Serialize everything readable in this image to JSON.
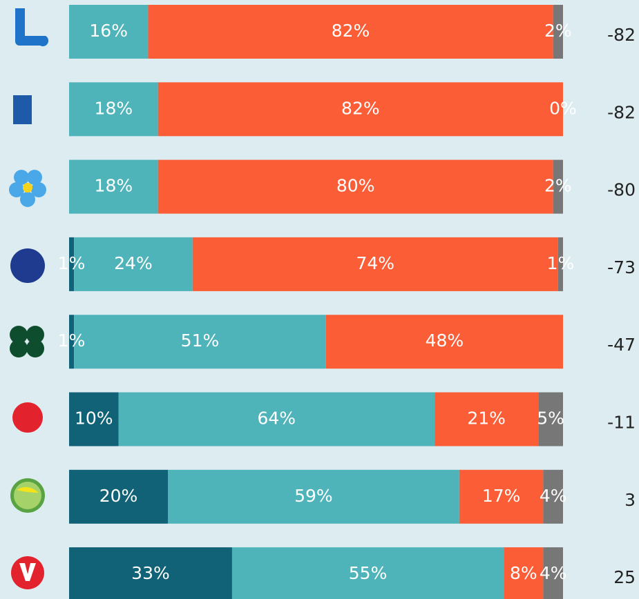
{
  "chart_data": {
    "type": "stacked-bar-horizontal",
    "categories": [
      null,
      null,
      null,
      null,
      null,
      null,
      null,
      null
    ],
    "xlim": [
      0,
      100
    ],
    "series": [
      {
        "color": "#126277",
        "values": [
          null,
          null,
          null,
          1,
          1,
          10,
          20,
          33
        ],
        "value_labels": [
          null,
          null,
          null,
          "1%",
          "1%",
          "10%",
          "20%",
          "33%"
        ]
      },
      {
        "color": "#4fb4b9",
        "values": [
          16,
          18,
          18,
          24,
          51,
          64,
          59,
          55
        ],
        "value_labels": [
          "16%",
          "18%",
          "18%",
          "24%",
          "51%",
          "64%",
          "59%",
          "55%"
        ]
      },
      {
        "color": "#fb5e37",
        "values": [
          82,
          82,
          80,
          74,
          48,
          21,
          17,
          8
        ],
        "value_labels": [
          "82%",
          "82%",
          "80%",
          "74%",
          "48%",
          "21%",
          "17%",
          "8%"
        ]
      },
      {
        "color": "#777777",
        "values": [
          2,
          0,
          2,
          1,
          null,
          5,
          4,
          4
        ],
        "value_labels": [
          "2%",
          "0%",
          "2%",
          "1%",
          null,
          "5%",
          "4%",
          "4%"
        ]
      }
    ],
    "net": [
      -82,
      -82,
      -80,
      -73,
      -47,
      -11,
      3,
      25
    ]
  }
}
